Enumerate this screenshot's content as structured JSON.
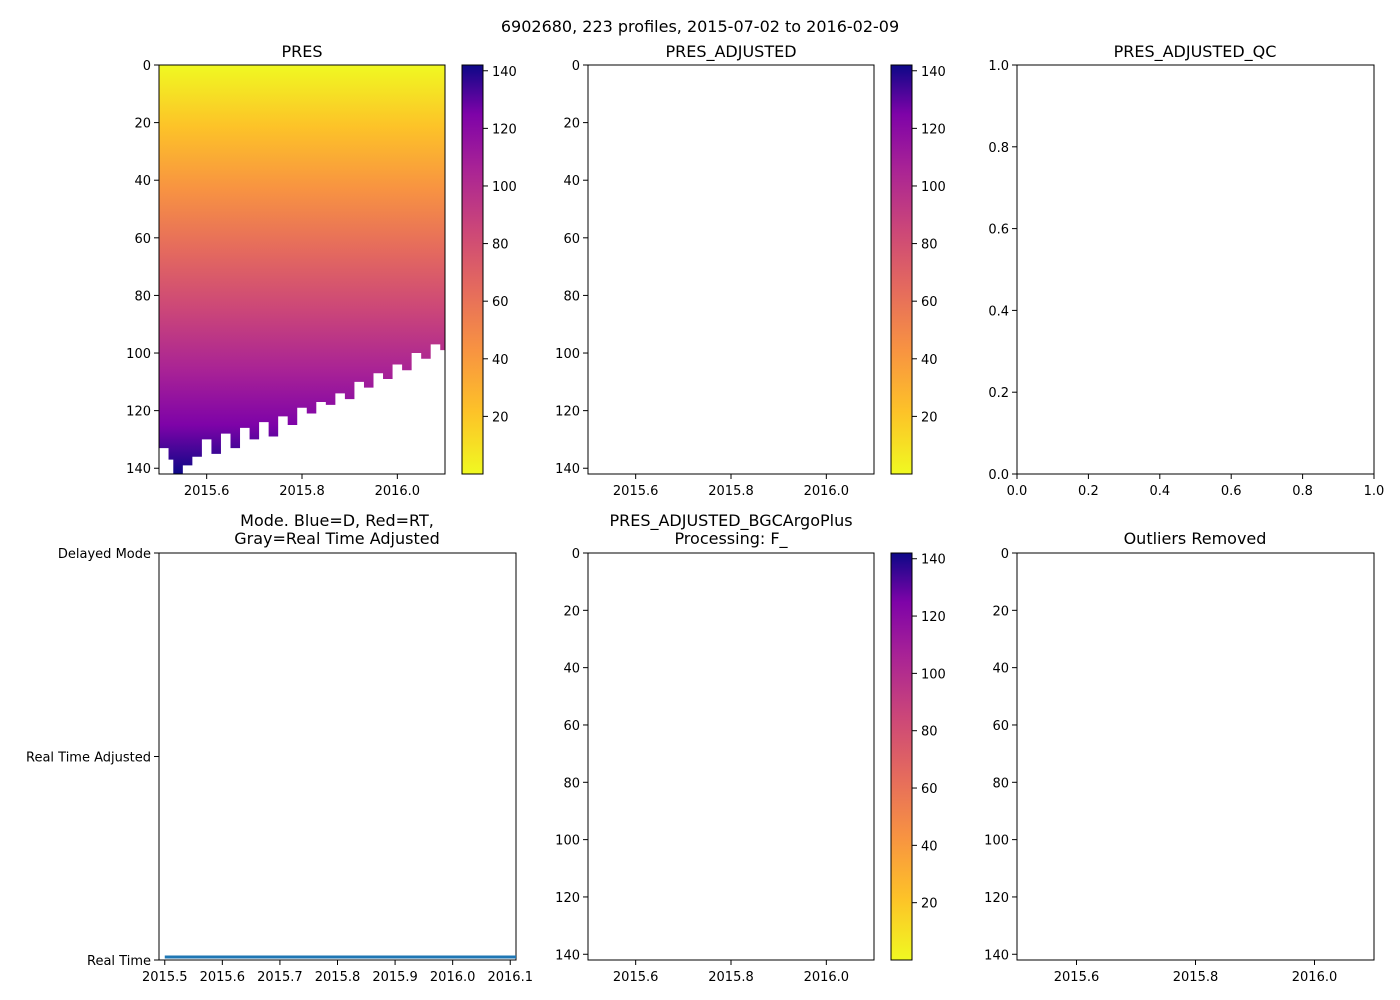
{
  "figure": {
    "suptitle": "6902680, 223 profiles, 2015-07-02 to 2016-02-09",
    "colormap": "plasma_r"
  },
  "chart_data": [
    {
      "id": "pres",
      "type": "heatmap",
      "title": "PRES",
      "xlim": [
        2015.5,
        2016.1
      ],
      "ylim": [
        142,
        0
      ],
      "xticks": [
        2015.6,
        2015.8,
        2016.0
      ],
      "xtick_labels": [
        "2015.6",
        "2015.8",
        "2016.0"
      ],
      "yticks": [
        0,
        20,
        40,
        60,
        80,
        100,
        120,
        140
      ],
      "ytick_labels": [
        "0",
        "20",
        "40",
        "60",
        "80",
        "100",
        "120",
        "140"
      ],
      "colorbar": {
        "range": [
          0,
          142
        ],
        "ticks": [
          20,
          40,
          60,
          80,
          100,
          120,
          140
        ],
        "tick_labels": [
          "20",
          "40",
          "60",
          "80",
          "100",
          "120",
          "140"
        ]
      },
      "max_depth_envelope": {
        "x": [
          2015.5,
          2015.52,
          2015.53,
          2015.55,
          2015.57,
          2015.59,
          2015.61,
          2015.63,
          2015.65,
          2015.67,
          2015.69,
          2015.71,
          2015.73,
          2015.75,
          2015.77,
          2015.79,
          2015.81,
          2015.83,
          2015.85,
          2015.87,
          2015.89,
          2015.91,
          2015.93,
          2015.95,
          2015.97,
          2015.99,
          2016.01,
          2016.03,
          2016.05,
          2016.07,
          2016.09,
          2016.1
        ],
        "depth": [
          133,
          137,
          142,
          139,
          136,
          130,
          135,
          128,
          133,
          126,
          130,
          124,
          129,
          122,
          125,
          119,
          121,
          117,
          118,
          114,
          116,
          110,
          112,
          107,
          109,
          104,
          106,
          100,
          102,
          97,
          99,
          96
        ]
      }
    },
    {
      "id": "pres_adjusted",
      "type": "heatmap",
      "title": "PRES_ADJUSTED",
      "xlim": [
        2015.5,
        2016.1
      ],
      "ylim": [
        142,
        0
      ],
      "xticks": [
        2015.6,
        2015.8,
        2016.0
      ],
      "xtick_labels": [
        "2015.6",
        "2015.8",
        "2016.0"
      ],
      "yticks": [
        0,
        20,
        40,
        60,
        80,
        100,
        120,
        140
      ],
      "ytick_labels": [
        "0",
        "20",
        "40",
        "60",
        "80",
        "100",
        "120",
        "140"
      ],
      "colorbar": {
        "range": [
          0,
          142
        ],
        "ticks": [
          20,
          40,
          60,
          80,
          100,
          120,
          140
        ],
        "tick_labels": [
          "20",
          "40",
          "60",
          "80",
          "100",
          "120",
          "140"
        ]
      }
    },
    {
      "id": "pres_adjusted_qc",
      "type": "scatter",
      "title": "PRES_ADJUSTED_QC",
      "xlim": [
        0,
        1
      ],
      "ylim": [
        0,
        1
      ],
      "xticks": [
        0,
        0.2,
        0.4,
        0.6,
        0.8,
        1.0
      ],
      "xtick_labels": [
        "0.0",
        "0.2",
        "0.4",
        "0.6",
        "0.8",
        "1.0"
      ],
      "yticks": [
        0,
        0.2,
        0.4,
        0.6,
        0.8,
        1.0
      ],
      "ytick_labels": [
        "0.0",
        "0.2",
        "0.4",
        "0.6",
        "0.8",
        "1.0"
      ]
    },
    {
      "id": "mode",
      "type": "line",
      "title_lines": [
        "Mode. Blue=D, Red=RT,",
        "Gray=Real Time Adjusted"
      ],
      "xlim": [
        2015.49,
        2016.11
      ],
      "ylim": [
        0,
        2
      ],
      "xticks": [
        2015.5,
        2015.6,
        2015.7,
        2015.8,
        2015.9,
        2016.0,
        2016.1
      ],
      "xtick_labels": [
        "2015.5",
        "2015.6",
        "2015.7",
        "2015.8",
        "2015.9",
        "2016.0",
        "2016.1"
      ],
      "yticks": [
        2,
        1,
        0
      ],
      "ytick_labels": [
        "Delayed Mode",
        "Real Time Adjusted",
        "Real Time"
      ],
      "series": [
        {
          "name": "mode",
          "color": "#1f77b4",
          "x": [
            2015.5,
            2016.11
          ],
          "values": [
            0,
            0
          ]
        }
      ]
    },
    {
      "id": "bgc_argo_plus",
      "type": "heatmap",
      "title_lines": [
        "PRES_ADJUSTED_BGCArgoPlus",
        "Processing: F_"
      ],
      "xlim": [
        2015.5,
        2016.1
      ],
      "ylim": [
        142,
        0
      ],
      "xticks": [
        2015.6,
        2015.8,
        2016.0
      ],
      "xtick_labels": [
        "2015.6",
        "2015.8",
        "2016.0"
      ],
      "yticks": [
        0,
        20,
        40,
        60,
        80,
        100,
        120,
        140
      ],
      "ytick_labels": [
        "0",
        "20",
        "40",
        "60",
        "80",
        "100",
        "120",
        "140"
      ],
      "colorbar": {
        "range": [
          0,
          142
        ],
        "ticks": [
          20,
          40,
          60,
          80,
          100,
          120,
          140
        ],
        "tick_labels": [
          "20",
          "40",
          "60",
          "80",
          "100",
          "120",
          "140"
        ]
      }
    },
    {
      "id": "outliers",
      "type": "scatter",
      "title": "Outliers Removed",
      "xlim": [
        2015.5,
        2016.1
      ],
      "ylim": [
        142,
        0
      ],
      "xticks": [
        2015.6,
        2015.8,
        2016.0
      ],
      "xtick_labels": [
        "2015.6",
        "2015.8",
        "2016.0"
      ],
      "yticks": [
        0,
        20,
        40,
        60,
        80,
        100,
        120,
        140
      ],
      "ytick_labels": [
        "0",
        "20",
        "40",
        "60",
        "80",
        "100",
        "120",
        "140"
      ]
    }
  ]
}
